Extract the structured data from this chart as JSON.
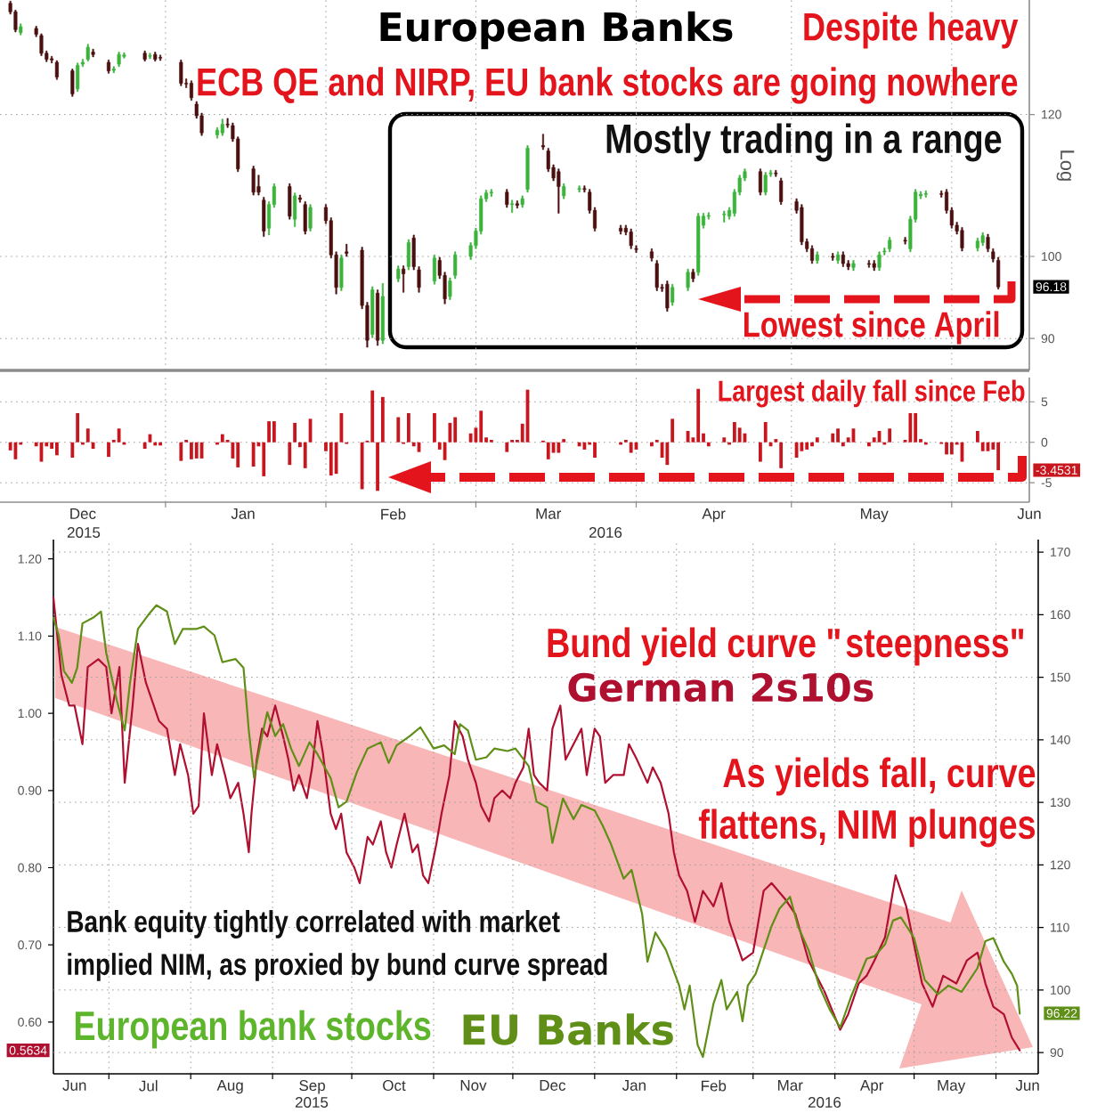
{
  "chart_data": [
    {
      "type": "candlestick",
      "title": "European Banks",
      "ylabel": "Log",
      "log": true,
      "grid": true,
      "tick_labels": "y",
      "annotations": [
        "Despite heavy",
        "ECB QE and NIRP, EU bank stocks are going nowhere",
        "Mostly trading in a range",
        "Lowest since April",
        {
          "text": "96.18",
          "y": 96.18
        }
      ],
      "x": [
        "2015-12-02",
        "2015-12-03",
        "2015-12-04",
        "2015-12-07",
        "2015-12-08",
        "2015-12-09",
        "2015-12-10",
        "2015-12-11",
        "2015-12-14",
        "2015-12-15",
        "2015-12-16",
        "2015-12-17",
        "2015-12-18",
        "2015-12-21",
        "2015-12-22",
        "2015-12-23",
        "2015-12-24",
        "2015-12-28",
        "2015-12-29",
        "2015-12-30",
        "2015-12-31",
        "2016-01-04",
        "2016-01-05",
        "2016-01-06",
        "2016-01-07",
        "2016-01-08",
        "2016-01-11",
        "2016-01-12",
        "2016-01-13",
        "2016-01-14",
        "2016-01-15",
        "2016-01-18",
        "2016-01-19",
        "2016-01-20",
        "2016-01-21",
        "2016-01-22",
        "2016-01-25",
        "2016-01-26",
        "2016-01-27",
        "2016-01-28",
        "2016-01-29",
        "2016-02-01",
        "2016-02-02",
        "2016-02-03",
        "2016-02-04",
        "2016-02-05",
        "2016-02-08",
        "2016-02-09",
        "2016-02-10",
        "2016-02-11",
        "2016-02-12",
        "2016-02-15",
        "2016-02-16",
        "2016-02-17",
        "2016-02-18",
        "2016-02-19",
        "2016-02-22",
        "2016-02-23",
        "2016-02-24",
        "2016-02-25",
        "2016-02-26",
        "2016-02-29",
        "2016-03-01",
        "2016-03-02",
        "2016-03-03",
        "2016-03-04",
        "2016-03-07",
        "2016-03-08",
        "2016-03-09",
        "2016-03-10",
        "2016-03-11",
        "2016-03-14",
        "2016-03-15",
        "2016-03-16",
        "2016-03-17",
        "2016-03-18",
        "2016-03-21",
        "2016-03-22",
        "2016-03-23",
        "2016-03-24",
        "2016-03-29",
        "2016-03-30",
        "2016-03-31",
        "2016-04-01",
        "2016-04-04",
        "2016-04-05",
        "2016-04-06",
        "2016-04-07",
        "2016-04-08",
        "2016-04-11",
        "2016-04-12",
        "2016-04-13",
        "2016-04-14",
        "2016-04-15",
        "2016-04-18",
        "2016-04-19",
        "2016-04-20",
        "2016-04-21",
        "2016-04-22",
        "2016-04-25",
        "2016-04-26",
        "2016-04-27",
        "2016-04-28",
        "2016-04-29",
        "2016-05-02",
        "2016-05-03",
        "2016-05-04",
        "2016-05-05",
        "2016-05-06",
        "2016-05-09",
        "2016-05-10",
        "2016-05-11",
        "2016-05-12",
        "2016-05-13",
        "2016-05-16",
        "2016-05-17",
        "2016-05-18",
        "2016-05-19",
        "2016-05-20",
        "2016-05-23",
        "2016-05-24",
        "2016-05-25",
        "2016-05-26",
        "2016-05-27",
        "2016-05-30",
        "2016-05-31",
        "2016-06-01",
        "2016-06-02",
        "2016-06-03",
        "2016-06-06",
        "2016-06-07",
        "2016-06-08",
        "2016-06-09",
        "2016-06-10"
      ],
      "ohlc": [
        [
          138.4,
          138.8,
          136.5,
          136.9
        ],
        [
          136.9,
          137.2,
          133.4,
          133.8
        ],
        [
          133.3,
          134.8,
          132.9,
          134.3
        ],
        [
          134.0,
          134.4,
          132.6,
          133.0
        ],
        [
          132.8,
          133.1,
          129.4,
          129.8
        ],
        [
          129.8,
          130.2,
          128.4,
          128.8
        ],
        [
          128.9,
          129.3,
          128.2,
          128.7
        ],
        [
          128.3,
          128.6,
          125.5,
          125.9
        ],
        [
          126.9,
          127.2,
          122.8,
          123.2
        ],
        [
          124.0,
          128.2,
          123.6,
          127.8
        ],
        [
          128.0,
          128.8,
          127.6,
          128.3
        ],
        [
          128.8,
          131.3,
          128.5,
          130.8
        ],
        [
          130.0,
          130.5,
          129.2,
          129.6
        ],
        [
          128.3,
          128.7,
          126.5,
          126.9
        ],
        [
          127.0,
          127.6,
          126.6,
          127.2
        ],
        [
          128.0,
          130.0,
          127.6,
          129.6
        ],
        [
          129.3,
          129.9,
          129.0,
          129.5
        ],
        [
          129.8,
          130.2,
          128.5,
          128.8
        ],
        [
          129.3,
          129.8,
          128.9,
          129.4
        ],
        [
          129.6,
          130.0,
          128.5,
          128.8
        ],
        [
          129.1,
          129.5,
          128.6,
          129.0
        ],
        [
          128.3,
          128.7,
          124.5,
          124.9
        ],
        [
          124.9,
          125.6,
          124.2,
          124.8
        ],
        [
          124.9,
          125.3,
          122.2,
          122.6
        ],
        [
          121.6,
          122.0,
          119.4,
          119.8
        ],
        [
          119.8,
          120.2,
          116.8,
          117.2
        ],
        [
          116.9,
          118.0,
          116.4,
          117.6
        ],
        [
          117.2,
          119.3,
          116.8,
          118.5
        ],
        [
          118.5,
          119.4,
          118.0,
          118.4
        ],
        [
          118.3,
          118.7,
          115.9,
          116.3
        ],
        [
          116.3,
          116.6,
          111.5,
          111.9
        ],
        [
          111.9,
          112.3,
          108.2,
          108.6
        ],
        [
          109.4,
          111.0,
          108.2,
          108.6
        ],
        [
          107.5,
          107.9,
          102.6,
          103.3
        ],
        [
          103.7,
          107.3,
          102.8,
          106.9
        ],
        [
          106.9,
          109.8,
          106.5,
          109.4
        ],
        [
          109.4,
          109.8,
          104.9,
          105.3
        ],
        [
          104.9,
          108.5,
          103.9,
          108.1
        ],
        [
          107.8,
          108.2,
          107.2,
          107.6
        ],
        [
          106.9,
          107.3,
          102.9,
          103.3
        ],
        [
          103.7,
          106.9,
          103.3,
          106.5
        ],
        [
          106.5,
          106.9,
          104.3,
          104.7
        ],
        [
          104.7,
          105.1,
          99.8,
          100.2
        ],
        [
          100.2,
          100.6,
          95.3,
          96.1
        ],
        [
          96.1,
          100.2,
          95.7,
          99.8
        ],
        [
          100.6,
          101.6,
          100.0,
          100.4
        ],
        [
          100.8,
          101.2,
          93.5,
          93.9
        ],
        [
          93.9,
          94.3,
          89.0,
          89.8
        ],
        [
          90.5,
          96.2,
          90.1,
          95.8
        ],
        [
          95.4,
          95.8,
          89.2,
          89.8
        ],
        [
          89.8,
          96.6,
          89.4,
          95.0
        ],
        [
          97.2,
          98.8,
          96.8,
          98.4
        ],
        [
          98.4,
          98.8,
          95.5,
          97.8
        ],
        [
          98.7,
          102.2,
          98.3,
          101.8
        ],
        [
          102.4,
          102.8,
          98.3,
          98.7
        ],
        [
          98.3,
          98.7,
          95.5,
          96.1
        ],
        [
          96.9,
          100.2,
          96.5,
          99.8
        ],
        [
          99.5,
          99.9,
          97.2,
          97.6
        ],
        [
          97.6,
          98.0,
          94.1,
          94.7
        ],
        [
          95.0,
          97.3,
          94.6,
          96.9
        ],
        [
          97.6,
          100.6,
          97.2,
          100.2
        ],
        [
          100.0,
          101.8,
          99.6,
          101.4
        ],
        [
          101.4,
          103.7,
          101.0,
          103.3
        ],
        [
          103.3,
          108.1,
          102.9,
          107.7
        ],
        [
          107.7,
          108.9,
          107.3,
          108.5
        ],
        [
          108.5,
          109.0,
          108.0,
          108.6
        ],
        [
          108.6,
          109.0,
          106.5,
          106.9
        ],
        [
          106.9,
          107.5,
          105.8,
          107.0
        ],
        [
          107.0,
          107.4,
          106.4,
          106.8
        ],
        [
          106.9,
          108.1,
          106.5,
          107.7
        ],
        [
          109.0,
          115.3,
          108.6,
          114.9
        ],
        [
          115.3,
          117.0,
          114.7,
          115.1
        ],
        [
          114.5,
          114.9,
          111.5,
          111.9
        ],
        [
          112.1,
          112.5,
          110.2,
          110.6
        ],
        [
          111.5,
          111.9,
          105.7,
          109.4
        ],
        [
          108.1,
          109.8,
          107.7,
          109.4
        ],
        [
          109.0,
          109.5,
          108.6,
          109.1
        ],
        [
          109.1,
          109.5,
          108.6,
          109.0
        ],
        [
          108.6,
          109.0,
          105.7,
          106.1
        ],
        [
          106.1,
          106.5,
          103.3,
          103.7
        ],
        [
          103.7,
          104.1,
          102.9,
          103.3
        ],
        [
          103.7,
          104.1,
          102.8,
          103.2
        ],
        [
          103.2,
          103.6,
          101.0,
          101.4
        ],
        [
          101.0,
          101.4,
          100.5,
          100.9
        ],
        [
          100.6,
          101.0,
          99.4,
          99.8
        ],
        [
          99.1,
          99.5,
          95.7,
          96.1
        ],
        [
          96.1,
          96.5,
          95.6,
          96.0
        ],
        [
          96.5,
          96.9,
          93.2,
          93.6
        ],
        [
          94.3,
          96.5,
          93.9,
          96.1
        ],
        [
          96.1,
          98.4,
          95.7,
          98.0
        ],
        [
          98.0,
          98.4,
          96.8,
          97.2
        ],
        [
          98.0,
          105.7,
          97.6,
          105.3
        ],
        [
          104.1,
          105.7,
          103.7,
          105.3
        ],
        [
          105.3,
          105.8,
          104.9,
          105.4
        ],
        [
          105.5,
          106.0,
          104.5,
          105.6
        ],
        [
          105.3,
          106.5,
          104.9,
          106.1
        ],
        [
          105.7,
          109.0,
          105.3,
          108.6
        ],
        [
          108.6,
          111.0,
          108.2,
          110.6
        ],
        [
          110.6,
          111.9,
          110.2,
          111.5
        ],
        [
          111.5,
          111.9,
          108.2,
          108.6
        ],
        [
          108.6,
          111.4,
          108.2,
          111.0
        ],
        [
          111.2,
          111.7,
          110.8,
          111.3
        ],
        [
          111.3,
          111.7,
          110.8,
          111.2
        ],
        [
          110.2,
          110.6,
          106.9,
          107.3
        ],
        [
          107.3,
          107.7,
          105.7,
          106.1
        ],
        [
          106.5,
          106.9,
          101.5,
          101.9
        ],
        [
          101.9,
          102.3,
          100.6,
          101.0
        ],
        [
          101.0,
          101.4,
          99.1,
          99.5
        ],
        [
          99.5,
          100.6,
          99.1,
          100.2
        ],
        [
          100.0,
          100.4,
          99.5,
          99.9
        ],
        [
          99.5,
          100.6,
          99.1,
          100.2
        ],
        [
          100.2,
          100.6,
          98.7,
          99.1
        ],
        [
          99.1,
          99.5,
          98.3,
          98.7
        ],
        [
          98.6,
          99.5,
          98.2,
          99.1
        ],
        [
          99.1,
          99.5,
          98.6,
          99.0
        ],
        [
          99.1,
          99.5,
          98.2,
          98.6
        ],
        [
          98.6,
          100.6,
          98.2,
          100.2
        ],
        [
          100.6,
          101.1,
          100.2,
          100.7
        ],
        [
          101.0,
          102.5,
          100.6,
          102.1
        ],
        [
          102.1,
          102.5,
          101.6,
          102.0
        ],
        [
          101.0,
          105.3,
          100.6,
          104.9
        ],
        [
          104.9,
          109.0,
          104.5,
          108.6
        ],
        [
          108.1,
          108.7,
          107.7,
          108.3
        ],
        [
          108.3,
          108.8,
          107.9,
          108.4
        ],
        [
          108.4,
          108.8,
          107.9,
          108.3
        ],
        [
          108.6,
          109.0,
          105.7,
          106.1
        ],
        [
          106.1,
          106.5,
          103.7,
          104.1
        ],
        [
          104.1,
          104.5,
          102.9,
          103.3
        ],
        [
          103.4,
          103.8,
          100.7,
          101.1
        ],
        [
          101.1,
          102.4,
          100.7,
          102.0
        ],
        [
          101.8,
          103.1,
          101.4,
          102.7
        ],
        [
          102.5,
          102.9,
          100.6,
          101.0
        ],
        [
          100.6,
          101.0,
          99.3,
          99.7
        ],
        [
          99.5,
          99.9,
          95.9,
          96.18
        ]
      ],
      "colors": [
        "#4b1010",
        "#4b1010",
        "#3cb43c",
        "#4b1010",
        "#4b1010",
        "#4b1010",
        "#4b1010",
        "#4b1010",
        "#4b1010",
        "#3cb43c",
        "#3cb43c",
        "#3cb43c",
        "#4b1010",
        "#4b1010",
        "#3cb43c",
        "#3cb43c",
        "#3cb43c",
        "#4b1010",
        "#3cb43c",
        "#4b1010",
        "#4b1010",
        "#4b1010",
        "#4b1010",
        "#4b1010",
        "#4b1010",
        "#4b1010",
        "#3cb43c",
        "#3cb43c",
        "#4b1010",
        "#4b1010",
        "#4b1010",
        "#4b1010",
        "#4b1010",
        "#4b1010",
        "#3cb43c",
        "#3cb43c",
        "#4b1010",
        "#3cb43c",
        "#4b1010",
        "#4b1010",
        "#3cb43c",
        "#4b1010",
        "#4b1010",
        "#4b1010",
        "#3cb43c",
        "#4b1010",
        "#4b1010",
        "#4b1010",
        "#3cb43c",
        "#4b1010",
        "#3cb43c",
        "#3cb43c",
        "#4b1010",
        "#3cb43c",
        "#4b1010",
        "#4b1010",
        "#3cb43c",
        "#4b1010",
        "#4b1010",
        "#3cb43c",
        "#3cb43c",
        "#3cb43c",
        "#3cb43c",
        "#3cb43c",
        "#3cb43c",
        "#3cb43c",
        "#4b1010",
        "#3cb43c",
        "#4b1010",
        "#3cb43c",
        "#3cb43c",
        "#4b1010",
        "#4b1010",
        "#4b1010",
        "#4b1010",
        "#3cb43c",
        "#3cb43c",
        "#4b1010",
        "#4b1010",
        "#4b1010",
        "#4b1010",
        "#4b1010",
        "#4b1010",
        "#4b1010",
        "#4b1010",
        "#4b1010",
        "#4b1010",
        "#4b1010",
        "#3cb43c",
        "#3cb43c",
        "#4b1010",
        "#3cb43c",
        "#3cb43c",
        "#3cb43c",
        "#3cb43c",
        "#3cb43c",
        "#3cb43c",
        "#3cb43c",
        "#3cb43c",
        "#4b1010",
        "#3cb43c",
        "#3cb43c",
        "#4b1010",
        "#4b1010",
        "#4b1010",
        "#4b1010",
        "#4b1010",
        "#4b1010",
        "#3cb43c",
        "#4b1010",
        "#3cb43c",
        "#4b1010",
        "#4b1010",
        "#3cb43c",
        "#4b1010",
        "#4b1010",
        "#3cb43c",
        "#3cb43c",
        "#3cb43c",
        "#4b1010",
        "#3cb43c",
        "#3cb43c",
        "#3cb43c",
        "#3cb43c",
        "#4b1010",
        "#4b1010",
        "#4b1010",
        "#4b1010",
        "#4b1010",
        "#3cb43c",
        "#3cb43c",
        "#4b1010",
        "#4b1010",
        "#4b1010"
      ],
      "xlim": [
        "2015-11-30",
        "2016-06-16"
      ],
      "ylim": [
        86.4,
        139
      ],
      "yticks": [
        90,
        100,
        120
      ],
      "xticks": [
        {
          "value": "2016-01-01",
          "label": null
        },
        {
          "value": "2016-02-01",
          "label": null
        },
        {
          "value": "2016-03-01",
          "label": null
        },
        {
          "value": "2016-04-01",
          "label": null
        },
        {
          "value": "2016-05-01",
          "label": null
        },
        {
          "value": "2016-06-01",
          "label": null
        }
      ]
    },
    {
      "type": "bar",
      "color": "#c8161e",
      "grid": true,
      "annotations": [
        "Largest daily fall since Feb",
        "-3.4531",
        "2015",
        "2016"
      ],
      "x": [
        "2015-12-02",
        "2015-12-03",
        "2015-12-04",
        "2015-12-07",
        "2015-12-08",
        "2015-12-09",
        "2015-12-10",
        "2015-12-11",
        "2015-12-14",
        "2015-12-15",
        "2015-12-16",
        "2015-12-17",
        "2015-12-18",
        "2015-12-21",
        "2015-12-22",
        "2015-12-23",
        "2015-12-24",
        "2015-12-28",
        "2015-12-29",
        "2015-12-30",
        "2015-12-31",
        "2016-01-04",
        "2016-01-05",
        "2016-01-06",
        "2016-01-07",
        "2016-01-08",
        "2016-01-11",
        "2016-01-12",
        "2016-01-13",
        "2016-01-14",
        "2016-01-15",
        "2016-01-18",
        "2016-01-19",
        "2016-01-20",
        "2016-01-21",
        "2016-01-22",
        "2016-01-25",
        "2016-01-26",
        "2016-01-27",
        "2016-01-28",
        "2016-01-29",
        "2016-02-01",
        "2016-02-02",
        "2016-02-03",
        "2016-02-04",
        "2016-02-05",
        "2016-02-08",
        "2016-02-09",
        "2016-02-10",
        "2016-02-11",
        "2016-02-12",
        "2016-02-15",
        "2016-02-16",
        "2016-02-17",
        "2016-02-18",
        "2016-02-19",
        "2016-02-22",
        "2016-02-23",
        "2016-02-24",
        "2016-02-25",
        "2016-02-26",
        "2016-02-29",
        "2016-03-01",
        "2016-03-02",
        "2016-03-03",
        "2016-03-04",
        "2016-03-07",
        "2016-03-08",
        "2016-03-09",
        "2016-03-10",
        "2016-03-11",
        "2016-03-14",
        "2016-03-15",
        "2016-03-16",
        "2016-03-17",
        "2016-03-18",
        "2016-03-21",
        "2016-03-22",
        "2016-03-23",
        "2016-03-24",
        "2016-03-29",
        "2016-03-30",
        "2016-03-31",
        "2016-04-01",
        "2016-04-04",
        "2016-04-05",
        "2016-04-06",
        "2016-04-07",
        "2016-04-08",
        "2016-04-11",
        "2016-04-12",
        "2016-04-13",
        "2016-04-14",
        "2016-04-15",
        "2016-04-18",
        "2016-04-19",
        "2016-04-20",
        "2016-04-21",
        "2016-04-22",
        "2016-04-25",
        "2016-04-26",
        "2016-04-27",
        "2016-04-28",
        "2016-04-29",
        "2016-05-02",
        "2016-05-03",
        "2016-05-04",
        "2016-05-05",
        "2016-05-06",
        "2016-05-09",
        "2016-05-10",
        "2016-05-11",
        "2016-05-12",
        "2016-05-13",
        "2016-05-16",
        "2016-05-17",
        "2016-05-18",
        "2016-05-19",
        "2016-05-20",
        "2016-05-23",
        "2016-05-24",
        "2016-05-25",
        "2016-05-26",
        "2016-05-27",
        "2016-05-30",
        "2016-05-31",
        "2016-06-01",
        "2016-06-02",
        "2016-06-03",
        "2016-06-06",
        "2016-06-07",
        "2016-06-08",
        "2016-06-09",
        "2016-06-10"
      ],
      "values": [
        -1.0,
        -2.1,
        -0.3,
        -0.5,
        -2.4,
        -0.5,
        -0.8,
        -1.6,
        -1.9,
        3.6,
        -0.3,
        1.7,
        -0.8,
        -1.8,
        0.3,
        1.7,
        -0.3,
        -0.8,
        1.0,
        -0.4,
        -0.4,
        -2.3,
        0.3,
        -2.1,
        -2.0,
        -2.0,
        -0.3,
        1.0,
        0.3,
        -2.0,
        -3.1,
        -3.0,
        -0.5,
        -4.2,
        2.6,
        2.6,
        -2.8,
        2.4,
        -0.6,
        -3.2,
        2.9,
        -1.1,
        -4.1,
        -3.9,
        3.6,
        -0.2,
        -5.8,
        0.2,
        6.4,
        -6.0,
        5.6,
        3.1,
        -0.2,
        3.6,
        -0.5,
        -1.2,
        3.6,
        -0.9,
        -2.2,
        2.4,
        3.1,
        1.1,
        1.8,
        3.9,
        0.6,
        0.3,
        -1.2,
        0.3,
        0.3,
        2.3,
        6.5,
        0.2,
        -2.1,
        -1.3,
        -1.3,
        0.4,
        -0.5,
        -0.9,
        -0.3,
        -1.9,
        -0.3,
        0.3,
        -1.3,
        -0.9,
        -0.5,
        0.3,
        -1.9,
        -2.8,
        2.9,
        1.4,
        0.6,
        6.6,
        1.1,
        -0.5,
        0.6,
        -0.3,
        2.5,
        1.8,
        1.1,
        -2.4,
        2.5,
        -0.5,
        0.4,
        -3.2,
        -1.9,
        -1.1,
        -0.9,
        -0.5,
        0.6,
        1.1,
        1.7,
        -0.5,
        0.6,
        1.7,
        -0.5,
        0.6,
        1.4,
        -0.3,
        1.7,
        0.3,
        3.6,
        3.6,
        0.4,
        -0.3,
        -0.2,
        -1.5,
        -1.5,
        -0.3,
        -2.4,
        1.4,
        -1.1,
        -1.1,
        -0.9,
        -3.4531
      ],
      "xlim": [
        "2015-11-30",
        "2016-06-16"
      ],
      "ylim": [
        -7.4,
        8.0
      ],
      "yticks": [
        -5,
        0,
        5
      ],
      "xticks": [
        {
          "value": "2016-01-01",
          "label": null
        },
        {
          "value": "2016-02-01",
          "label": null
        },
        {
          "value": "2016-03-01",
          "label": null
        },
        {
          "value": "2016-04-01",
          "label": null
        },
        {
          "value": "2016-05-01",
          "label": null
        },
        {
          "value": "2016-06-01",
          "label": null
        },
        {
          "value": "2015-12-16",
          "label": "Dec"
        },
        {
          "value": "2016-01-16",
          "label": "Jan"
        },
        {
          "value": "2016-02-14",
          "label": "Feb"
        },
        {
          "value": "2016-03-15",
          "label": "Mar"
        },
        {
          "value": "2016-04-16",
          "label": "Apr"
        },
        {
          "value": "2016-05-17",
          "label": "May"
        },
        {
          "value": "2016-06-16",
          "label": "Jun"
        }
      ]
    },
    {
      "type": "line",
      "grid": true,
      "annotations": [
        "Bund yield curve \"steepness\"",
        "As yields fall, curve",
        "flattens, NIM plunges",
        "Bank equity tightly correlated with market",
        "implied NIM, as proxied by bund curve spread",
        "European bank stocks",
        {
          "text": "0.5634",
          "y": 0.5634
        },
        "96.22",
        "2015",
        "2016"
      ],
      "series": [
        {
          "name": "German 2s10s",
          "color": "#b01030",
          "x": [
            "2015-06-10",
            "2015-06-13",
            "2015-06-16",
            "2015-06-18",
            "2015-06-21",
            "2015-06-23",
            "2015-06-27",
            "2015-06-30",
            "2015-07-02",
            "2015-07-05",
            "2015-07-07",
            "2015-07-10",
            "2015-07-12",
            "2015-07-15",
            "2015-07-18",
            "2015-07-20",
            "2015-07-23",
            "2015-07-26",
            "2015-07-28",
            "2015-07-31",
            "2015-08-02",
            "2015-08-04",
            "2015-08-06",
            "2015-08-09",
            "2015-08-11",
            "2015-08-14",
            "2015-08-16",
            "2015-08-19",
            "2015-08-21",
            "2015-08-23",
            "2015-08-24",
            "2015-08-26",
            "2015-08-28",
            "2015-08-30",
            "2015-09-02",
            "2015-09-05",
            "2015-09-07",
            "2015-09-09",
            "2015-09-11",
            "2015-09-14",
            "2015-09-16",
            "2015-09-18",
            "2015-09-20",
            "2015-09-23",
            "2015-09-25",
            "2015-09-27",
            "2015-09-29",
            "2015-10-02",
            "2015-10-04",
            "2015-10-07",
            "2015-10-09",
            "2015-10-12",
            "2015-10-14",
            "2015-10-16",
            "2015-10-18",
            "2015-10-21",
            "2015-10-24",
            "2015-10-26",
            "2015-10-28",
            "2015-10-30",
            "2015-11-02",
            "2015-11-04",
            "2015-11-07",
            "2015-11-09",
            "2015-11-12",
            "2015-11-14",
            "2015-11-17",
            "2015-11-19",
            "2015-11-22",
            "2015-11-24",
            "2015-11-27",
            "2015-11-30",
            "2015-12-02",
            "2015-12-05",
            "2015-12-07",
            "2015-12-09",
            "2015-12-11",
            "2015-12-14",
            "2015-12-16",
            "2015-12-19",
            "2015-12-21",
            "2015-12-24",
            "2015-12-27",
            "2015-12-29",
            "2016-01-01",
            "2016-01-03",
            "2016-01-05",
            "2016-01-08",
            "2016-01-12",
            "2016-01-14",
            "2016-01-17",
            "2016-01-21",
            "2016-01-23",
            "2016-01-26",
            "2016-01-29",
            "2016-01-31",
            "2016-02-02",
            "2016-02-05",
            "2016-02-08",
            "2016-02-11",
            "2016-02-15",
            "2016-02-18",
            "2016-02-21",
            "2016-02-26",
            "2016-03-01",
            "2016-03-05",
            "2016-03-08",
            "2016-03-13",
            "2016-03-17",
            "2016-03-22",
            "2016-03-28",
            "2016-04-03",
            "2016-04-06",
            "2016-04-10",
            "2016-04-13",
            "2016-04-16",
            "2016-04-20",
            "2016-04-24",
            "2016-04-28",
            "2016-05-01",
            "2016-05-04",
            "2016-05-08",
            "2016-05-12",
            "2016-05-17",
            "2016-05-21",
            "2016-05-25",
            "2016-05-28",
            "2016-05-31",
            "2016-06-04",
            "2016-06-07",
            "2016-06-10"
          ],
          "values": [
            1.15,
            1.05,
            1.01,
            1.01,
            0.96,
            1.06,
            1.07,
            1.06,
            1.0,
            1.06,
            0.91,
            1.01,
            1.09,
            1.04,
            1.01,
            0.99,
            0.98,
            0.92,
            0.96,
            0.92,
            0.87,
            0.88,
            1.0,
            0.92,
            0.96,
            0.92,
            0.89,
            0.91,
            0.87,
            0.82,
            0.87,
            0.94,
            0.98,
            0.97,
            1.01,
            0.97,
            0.94,
            0.9,
            0.92,
            0.89,
            0.93,
            0.99,
            0.95,
            0.87,
            0.85,
            0.87,
            0.82,
            0.8,
            0.78,
            0.84,
            0.83,
            0.86,
            0.82,
            0.8,
            0.83,
            0.87,
            0.82,
            0.83,
            0.79,
            0.78,
            0.83,
            0.87,
            0.92,
            0.99,
            0.97,
            0.94,
            0.91,
            0.88,
            0.86,
            0.89,
            0.9,
            0.89,
            0.91,
            0.93,
            0.98,
            0.92,
            0.91,
            0.9,
            0.98,
            1.01,
            0.94,
            0.96,
            0.98,
            0.92,
            0.98,
            0.97,
            0.91,
            0.92,
            0.92,
            0.96,
            0.94,
            0.91,
            0.93,
            0.91,
            0.87,
            0.82,
            0.79,
            0.77,
            0.73,
            0.77,
            0.75,
            0.78,
            0.73,
            0.68,
            0.69,
            0.77,
            0.78,
            0.76,
            0.74,
            0.68,
            0.64,
            0.59,
            0.61,
            0.65,
            0.66,
            0.68,
            0.71,
            0.79,
            0.75,
            0.7,
            0.65,
            0.62,
            0.66,
            0.65,
            0.68,
            0.69,
            0.65,
            0.62,
            0.61,
            0.58,
            0.5634
          ]
        },
        {
          "name": "EU Banks",
          "color": "#5f8f17",
          "axis": "y2",
          "x": [
            "2015-06-10",
            "2015-06-12",
            "2015-06-14",
            "2015-06-17",
            "2015-06-19",
            "2015-06-21",
            "2015-06-25",
            "2015-06-28",
            "2015-06-30",
            "2015-07-04",
            "2015-07-07",
            "2015-07-09",
            "2015-07-12",
            "2015-07-16",
            "2015-07-19",
            "2015-07-23",
            "2015-07-26",
            "2015-07-29",
            "2015-08-03",
            "2015-08-06",
            "2015-08-10",
            "2015-08-13",
            "2015-08-18",
            "2015-08-21",
            "2015-08-23",
            "2015-08-25",
            "2015-08-28",
            "2015-08-30",
            "2015-09-02",
            "2015-09-05",
            "2015-09-08",
            "2015-09-11",
            "2015-09-15",
            "2015-09-18",
            "2015-09-23",
            "2015-09-26",
            "2015-09-29",
            "2015-10-03",
            "2015-10-07",
            "2015-10-12",
            "2015-10-15",
            "2015-10-18",
            "2015-10-23",
            "2015-10-27",
            "2015-11-01",
            "2015-11-05",
            "2015-11-09",
            "2015-11-11",
            "2015-11-14",
            "2015-11-17",
            "2015-11-21",
            "2015-11-24",
            "2015-11-29",
            "2015-12-02",
            "2015-12-07",
            "2015-12-10",
            "2015-12-14",
            "2015-12-16",
            "2015-12-20",
            "2015-12-24",
            "2015-12-27",
            "2016-01-01",
            "2016-01-04",
            "2016-01-07",
            "2016-01-12",
            "2016-01-15",
            "2016-01-19",
            "2016-01-21",
            "2016-01-24",
            "2016-01-28",
            "2016-02-02",
            "2016-02-04",
            "2016-02-06",
            "2016-02-09",
            "2016-02-11",
            "2016-02-15",
            "2016-02-18",
            "2016-02-20",
            "2016-02-24",
            "2016-02-26",
            "2016-02-28",
            "2016-03-02",
            "2016-03-05",
            "2016-03-08",
            "2016-03-11",
            "2016-03-15",
            "2016-03-18",
            "2016-03-22",
            "2016-03-26",
            "2016-03-30",
            "2016-04-03",
            "2016-04-07",
            "2016-04-13",
            "2016-04-16",
            "2016-04-20",
            "2016-04-23",
            "2016-04-26",
            "2016-05-01",
            "2016-05-05",
            "2016-05-10",
            "2016-05-14",
            "2016-05-19",
            "2016-05-25",
            "2016-05-28",
            "2016-05-31",
            "2016-06-04",
            "2016-06-07",
            "2016-06-09",
            "2016-06-10"
          ],
          "values": [
            159.5,
            156.7,
            151.0,
            149.1,
            151.5,
            158.6,
            159.5,
            160.5,
            153.9,
            146.3,
            141.5,
            149.1,
            157.7,
            160.0,
            161.5,
            160.5,
            155.3,
            157.7,
            157.7,
            158.1,
            156.7,
            152.4,
            152.9,
            151.5,
            141.5,
            133.9,
            140.6,
            144.4,
            140.6,
            142.5,
            138.6,
            135.8,
            139.6,
            137.7,
            133.9,
            129.2,
            130.1,
            134.9,
            138.6,
            139.6,
            136.3,
            139.1,
            140.6,
            142.0,
            138.6,
            139.1,
            137.7,
            142.5,
            141.5,
            136.8,
            137.2,
            138.6,
            138.2,
            138.6,
            135.8,
            130.1,
            129.2,
            123.5,
            130.6,
            127.3,
            129.6,
            128.7,
            126.3,
            123.5,
            117.8,
            119.2,
            112.1,
            104.5,
            109.2,
            106.4,
            100.7,
            96.9,
            100.7,
            91.2,
            89.3,
            97.8,
            101.6,
            96.9,
            99.7,
            95.0,
            100.7,
            102.6,
            106.4,
            110.2,
            113.0,
            114.9,
            110.2,
            106.4,
            100.7,
            96.9,
            94.0,
            98.8,
            105.0,
            105.4,
            107.3,
            111.1,
            111.6,
            108.3,
            101.6,
            99.3,
            100.7,
            99.7,
            103.5,
            107.8,
            108.3,
            104.5,
            102.6,
            100.7,
            96.22
          ]
        }
      ],
      "xlim": [
        "2015-06-10",
        "2016-06-17"
      ],
      "ylim": [
        0.533,
        1.225
      ],
      "y2lim": [
        86.6,
        172
      ],
      "yticks": [
        {
          "value": 0.6,
          "label": "0.60"
        },
        {
          "value": 0.7,
          "label": "0.70"
        },
        {
          "value": 0.8,
          "label": "0.80"
        },
        {
          "value": 0.9,
          "label": "0.90"
        },
        {
          "value": 1.0,
          "label": "1.00"
        },
        {
          "value": 1.1,
          "label": "1.10"
        },
        {
          "value": 1.2,
          "label": "1.20"
        }
      ],
      "y2ticks": [
        90,
        100,
        110,
        120,
        130,
        140,
        150,
        160,
        170
      ],
      "xticks": [
        {
          "value": "2015-07-01",
          "label": null
        },
        {
          "value": "2015-08-01",
          "label": null
        },
        {
          "value": "2015-09-01",
          "label": null
        },
        {
          "value": "2015-10-01",
          "label": null
        },
        {
          "value": "2015-11-01",
          "label": null
        },
        {
          "value": "2015-12-01",
          "label": null
        },
        {
          "value": "2016-01-01",
          "label": null
        },
        {
          "value": "2016-02-01",
          "label": null
        },
        {
          "value": "2016-03-01",
          "label": null
        },
        {
          "value": "2016-04-01",
          "label": null
        },
        {
          "value": "2016-05-01",
          "label": null
        },
        {
          "value": "2016-06-01",
          "label": null
        },
        {
          "value": "2015-06-18",
          "label": "Jun"
        },
        {
          "value": "2015-07-16",
          "label": "Jul"
        },
        {
          "value": "2015-08-16",
          "label": "Aug"
        },
        {
          "value": "2015-09-16",
          "label": "Sep"
        },
        {
          "value": "2015-10-17",
          "label": "Oct"
        },
        {
          "value": "2015-11-16",
          "label": "Nov"
        },
        {
          "value": "2015-12-16",
          "label": "Dec"
        },
        {
          "value": "2016-01-16",
          "label": "Jan"
        },
        {
          "value": "2016-02-15",
          "label": "Feb"
        },
        {
          "value": "2016-03-15",
          "label": "Mar"
        },
        {
          "value": "2016-04-15",
          "label": "Apr"
        },
        {
          "value": "2016-05-15",
          "label": "May"
        },
        {
          "value": "2016-06-13",
          "label": "Jun"
        }
      ]
    }
  ]
}
